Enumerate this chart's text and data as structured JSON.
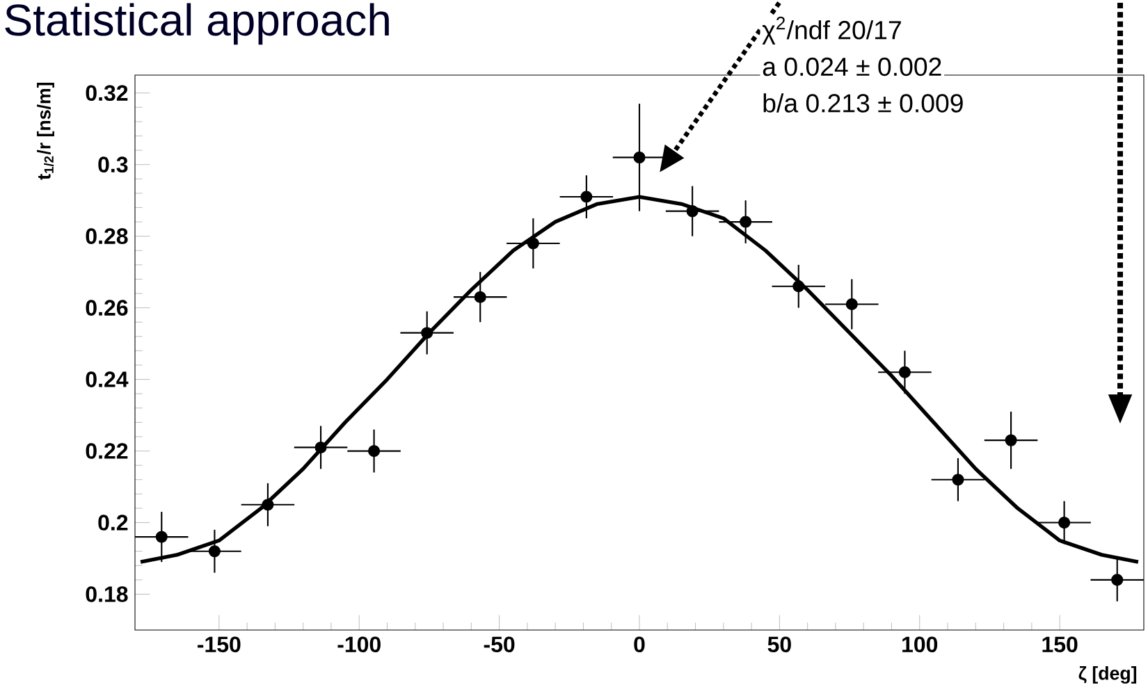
{
  "chart_data": {
    "type": "scatter",
    "title": "Statistical approach",
    "xlabel": "ζ [deg]",
    "ylabel": "t$_{1/2}$/r [ns/m]",
    "annotations": [
      "χ$^{2}$/ndf  20/17",
      "a    0.024 ± 0.002",
      "b/a    0.213 ± 0.009"
    ],
    "xlim": [
      -180,
      180
    ],
    "ylim": [
      0.17,
      0.325
    ],
    "xticks": [
      -150,
      -100,
      -50,
      0,
      50,
      100,
      150
    ],
    "yticks": [
      0.18,
      0.2,
      0.22,
      0.24,
      0.26,
      0.28,
      0.3,
      0.32
    ],
    "series": [
      {
        "color": "#000000",
        "marker": "circle",
        "x": [
          -170.5,
          -151.6,
          -132.6,
          -113.7,
          -94.7,
          -75.8,
          -56.8,
          -37.9,
          -18.9,
          0,
          18.9,
          37.9,
          56.8,
          75.8,
          94.7,
          113.7,
          132.6,
          151.6,
          170.5
        ],
        "values": [
          0.196,
          0.192,
          0.205,
          0.221,
          0.22,
          0.253,
          0.263,
          0.278,
          0.291,
          0.302,
          0.287,
          0.284,
          0.266,
          0.261,
          0.242,
          0.212,
          0.223,
          0.2,
          0.184
        ],
        "errors": [
          0.007,
          0.006,
          0.006,
          0.006,
          0.006,
          0.006,
          0.007,
          0.007,
          0.006,
          0.015,
          0.007,
          0.006,
          0.006,
          0.007,
          0.006,
          0.006,
          0.008,
          0.006,
          0.006
        ],
        "xerrors": [
          9.5,
          9.5,
          9.5,
          9.5,
          9.5,
          9.5,
          9.5,
          9.5,
          9.5,
          9.5,
          9.5,
          9.5,
          9.5,
          9.5,
          9.5,
          9.5,
          9.5,
          9.5,
          9.5
        ]
      },
      {
        "type": "line",
        "color": "#000000",
        "marker": "none",
        "x": [
          -178,
          -165,
          -150,
          -135,
          -120,
          -105,
          -90,
          -75,
          -60,
          -45,
          -30,
          -15,
          0,
          15,
          30,
          45,
          60,
          75,
          90,
          105,
          120,
          135,
          150,
          165,
          178
        ],
        "values": [
          0.189,
          0.191,
          0.195,
          0.204,
          0.215,
          0.228,
          0.24,
          0.253,
          0.265,
          0.276,
          0.284,
          0.289,
          0.291,
          0.289,
          0.285,
          0.276,
          0.265,
          0.253,
          0.241,
          0.228,
          0.215,
          0.204,
          0.195,
          0.191,
          0.189
        ]
      }
    ]
  }
}
